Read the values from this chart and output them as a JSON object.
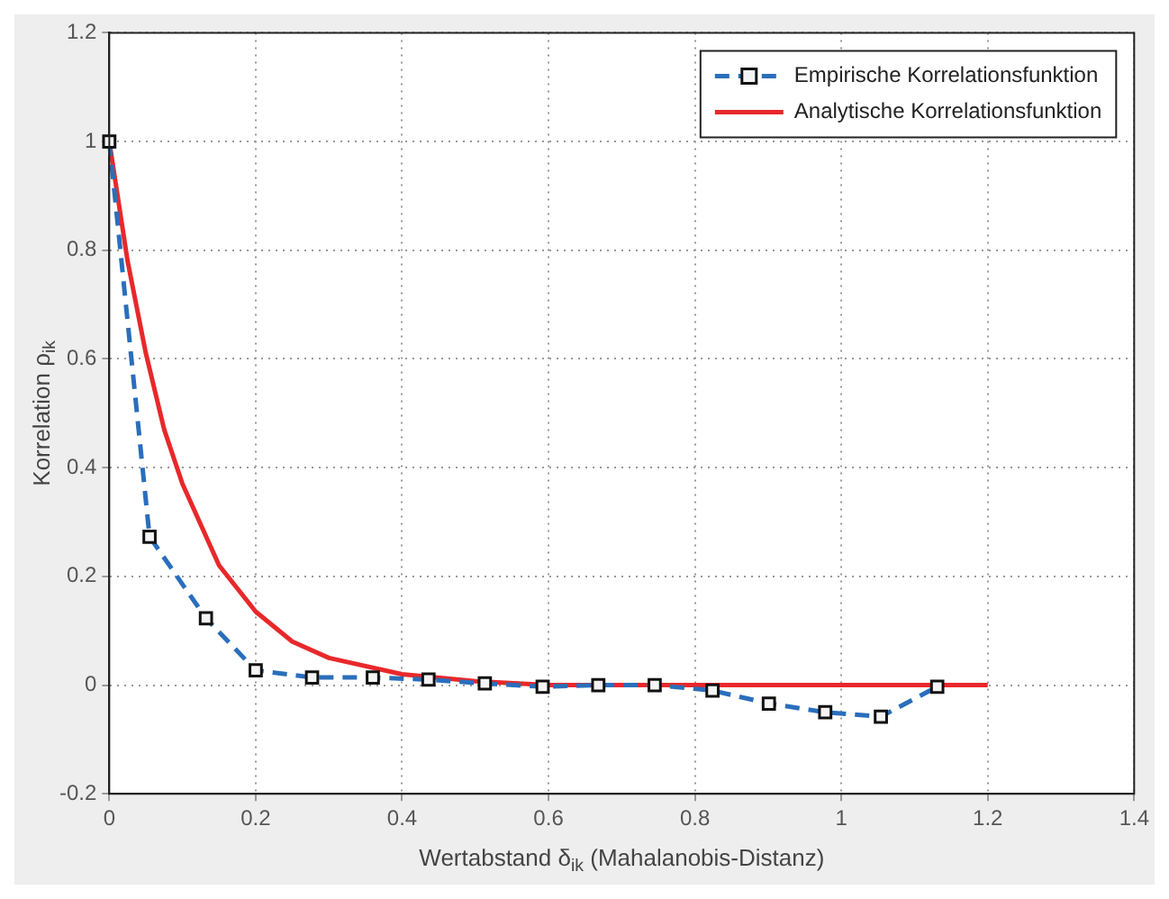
{
  "chart_data": {
    "type": "line",
    "xlabel": "Wertabstand δ$_{ik}$ (Mahalanobis-Distanz)",
    "ylabel": "Korrelation ρ$_{ik}$",
    "xlim": [
      0,
      1.4
    ],
    "ylim": [
      -0.2,
      1.2
    ],
    "xticks": [
      0,
      0.2,
      0.4,
      0.6,
      0.8,
      1,
      1.2,
      1.4
    ],
    "yticks": [
      -0.2,
      0,
      0.2,
      0.4,
      0.6,
      0.8,
      1,
      1.2
    ],
    "grid": true,
    "legend": "top right",
    "series": [
      {
        "name": "Empirische Korrelationsfunktion",
        "color": "#2a6ebb",
        "marker": "square",
        "line_style": "dashed",
        "x": [
          0,
          0.055,
          0.132,
          0.2,
          0.277,
          0.36,
          0.436,
          0.513,
          0.592,
          0.668,
          0.745,
          0.824,
          0.901,
          0.978,
          1.054,
          1.131
        ],
        "values": [
          1,
          0.273,
          0.123,
          0.027,
          0.014,
          0.014,
          0.01,
          0.003,
          -0.003,
          0,
          0,
          -0.01,
          -0.034,
          -0.05,
          -0.058,
          -0.003
        ]
      },
      {
        "name": "Analytische Korrelationsfunktion",
        "color": "#e8282b",
        "marker": "none",
        "line_style": "solid",
        "x": [
          0,
          0.025,
          0.05,
          0.075,
          0.1,
          0.15,
          0.2,
          0.25,
          0.3,
          0.4,
          0.5,
          0.6,
          0.8,
          1,
          1.2
        ],
        "values": [
          1,
          0.78,
          0.61,
          0.47,
          0.37,
          0.22,
          0.135,
          0.08,
          0.05,
          0.02,
          0.007,
          0,
          0,
          0,
          0
        ]
      }
    ]
  }
}
